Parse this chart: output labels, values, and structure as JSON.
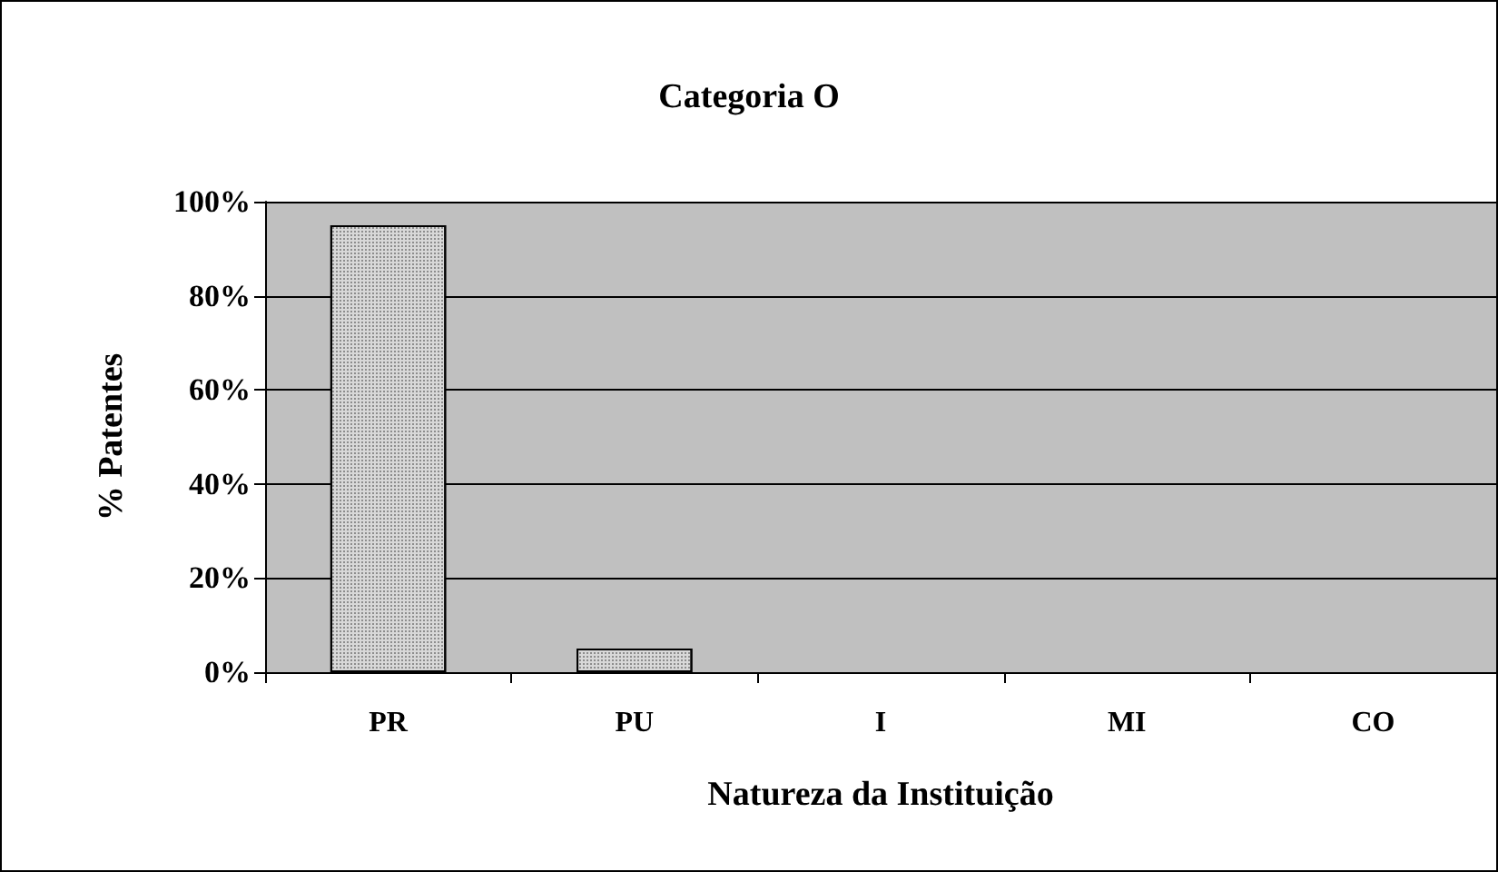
{
  "chart_data": {
    "type": "bar",
    "title": "Categoria O",
    "xlabel": "Natureza da Instituição",
    "ylabel": "% Patentes",
    "categories": [
      "PR",
      "PU",
      "I",
      "MI",
      "CO"
    ],
    "values": [
      95,
      5,
      0,
      0,
      0
    ],
    "color": "#d8d8d8",
    "ylim": [
      0,
      100
    ],
    "yticks": [
      {
        "value": 0,
        "label": "0%"
      },
      {
        "value": 20,
        "label": "20%"
      },
      {
        "value": 40,
        "label": "40%"
      },
      {
        "value": 60,
        "label": "60%"
      },
      {
        "value": 80,
        "label": "80%"
      },
      {
        "value": 100,
        "label": "100%"
      }
    ],
    "grid": "y"
  }
}
